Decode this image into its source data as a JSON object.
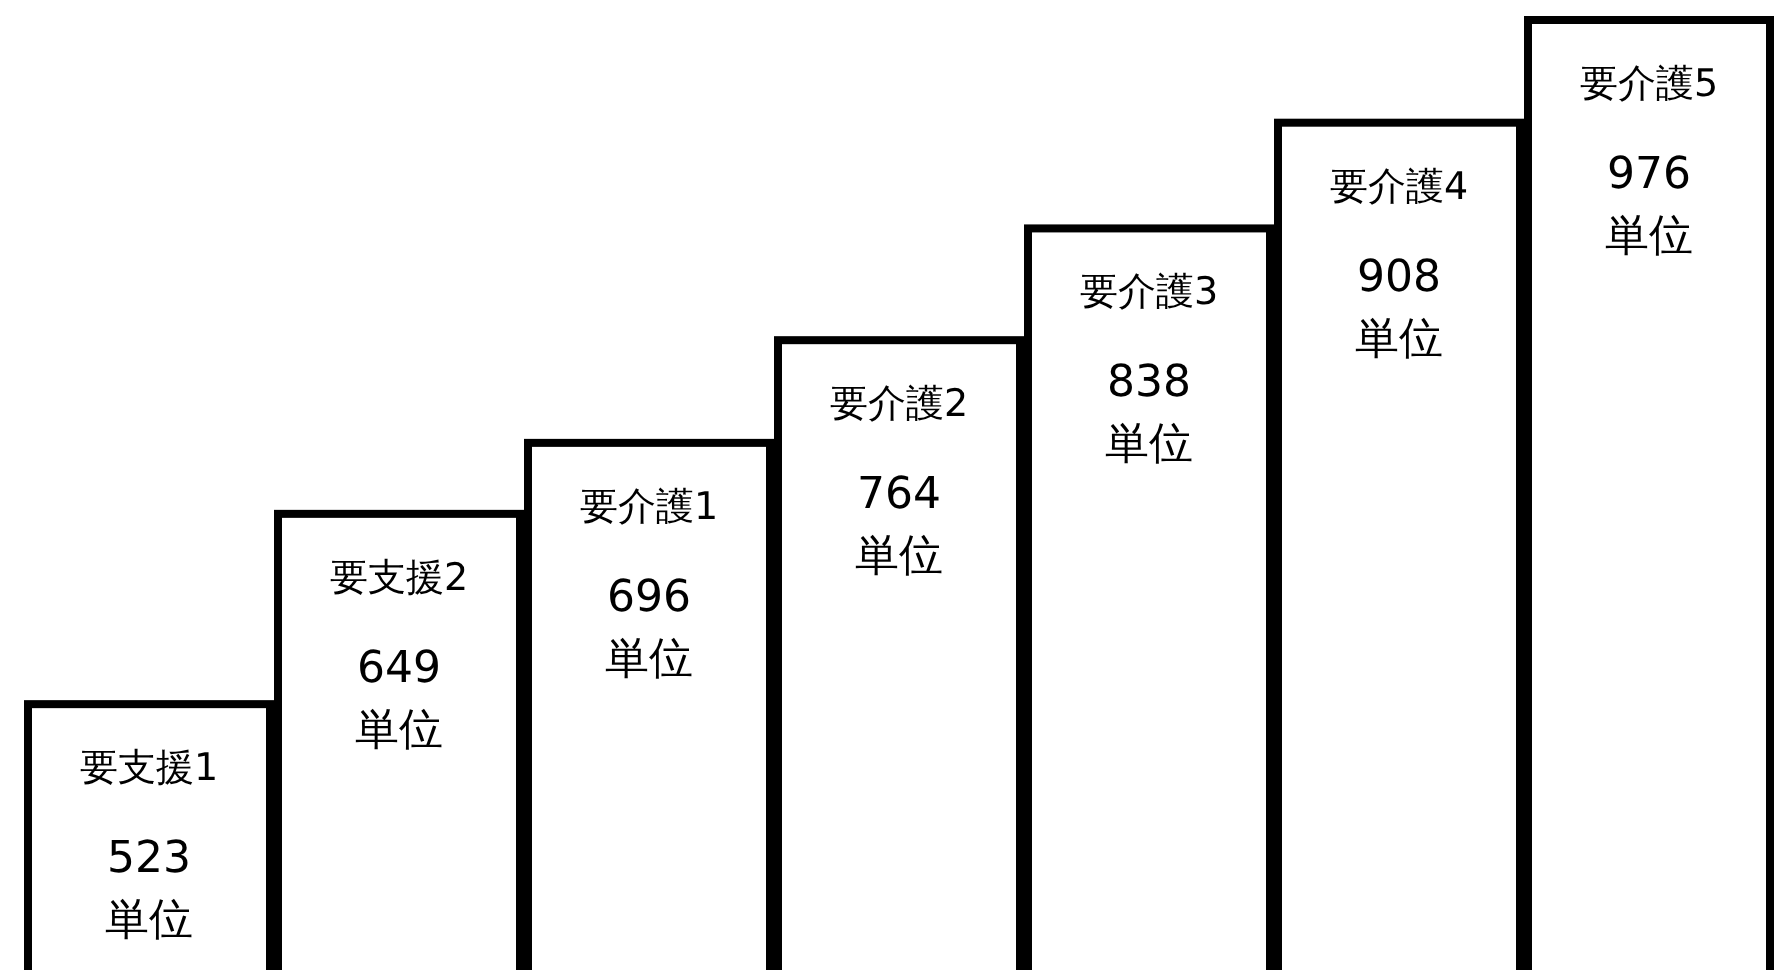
{
  "chart_data": {
    "type": "bar",
    "categories": [
      "要支援1",
      "要支援2",
      "要介護1",
      "要介護2",
      "要介護3",
      "要介護4",
      "要介護5"
    ],
    "values": [
      523,
      649,
      696,
      764,
      838,
      908,
      976
    ],
    "value_labels": [
      "523\n単位",
      "649\n単位",
      "696\n単位",
      "764\n単位",
      "838\n単位",
      "908\n単位",
      "976\n単位"
    ],
    "color": "#ffffff",
    "ylim": [
      343,
      976
    ]
  }
}
